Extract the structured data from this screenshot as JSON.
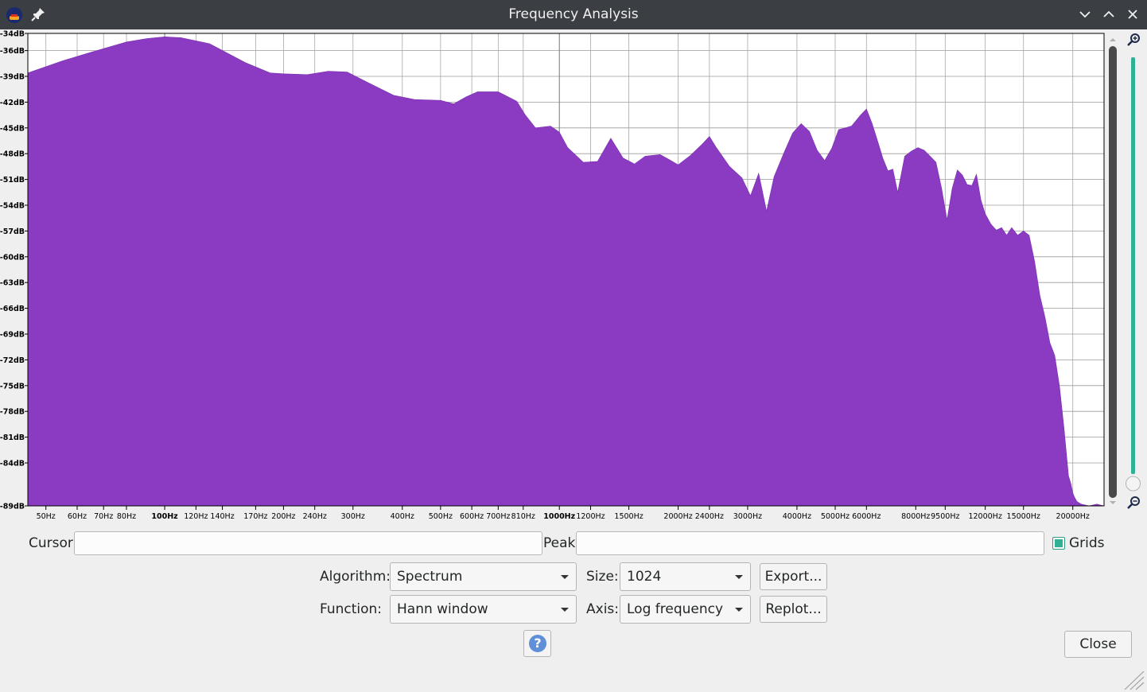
{
  "window": {
    "title": "Frequency Analysis",
    "icon_app": "audacity-logo-icon",
    "icon_pin": "pin-icon",
    "controls": [
      "chevron-down-icon",
      "chevron-up-icon",
      "close-icon"
    ]
  },
  "chart_data": {
    "type": "area",
    "title": "",
    "xlabel": "",
    "ylabel": "",
    "x_scale": "log",
    "xlim": [
      45,
      24000
    ],
    "ylim": [
      -89,
      -34
    ],
    "grid": true,
    "fill_color": "#8b3ac2",
    "y_ticks": [
      {
        "v": -34,
        "label": "-34dB"
      },
      {
        "v": -36,
        "label": "-36dB"
      },
      {
        "v": -39,
        "label": "-39dB"
      },
      {
        "v": -42,
        "label": "-42dB"
      },
      {
        "v": -45,
        "label": "-45dB"
      },
      {
        "v": -48,
        "label": "-48dB"
      },
      {
        "v": -51,
        "label": "-51dB"
      },
      {
        "v": -54,
        "label": "-54dB"
      },
      {
        "v": -57,
        "label": "-57dB"
      },
      {
        "v": -60,
        "label": "-60dB"
      },
      {
        "v": -63,
        "label": "-63dB"
      },
      {
        "v": -66,
        "label": "-66dB"
      },
      {
        "v": -69,
        "label": "-69dB"
      },
      {
        "v": -72,
        "label": "-72dB"
      },
      {
        "v": -75,
        "label": "-75dB"
      },
      {
        "v": -78,
        "label": "-78dB"
      },
      {
        "v": -81,
        "label": "-81dB"
      },
      {
        "v": -84,
        "label": "-84dB"
      },
      {
        "v": -89,
        "label": "-89dB"
      }
    ],
    "x_ticks": [
      {
        "v": 50,
        "label": "50Hz"
      },
      {
        "v": 60,
        "label": "60Hz"
      },
      {
        "v": 70,
        "label": "70Hz"
      },
      {
        "v": 80,
        "label": "80Hz"
      },
      {
        "v": 100,
        "label": "100Hz",
        "major": true
      },
      {
        "v": 120,
        "label": "120Hz"
      },
      {
        "v": 140,
        "label": "140Hz"
      },
      {
        "v": 170,
        "label": "170Hz"
      },
      {
        "v": 200,
        "label": "200Hz"
      },
      {
        "v": 240,
        "label": "240Hz"
      },
      {
        "v": 300,
        "label": "300Hz"
      },
      {
        "v": 400,
        "label": "400Hz"
      },
      {
        "v": 500,
        "label": "500Hz"
      },
      {
        "v": 600,
        "label": "600Hz"
      },
      {
        "v": 700,
        "label": "700Hz"
      },
      {
        "v": 810,
        "label": "810Hz"
      },
      {
        "v": 1000,
        "label": "1000Hz",
        "major": true
      },
      {
        "v": 1200,
        "label": "1200Hz"
      },
      {
        "v": 1500,
        "label": "1500Hz"
      },
      {
        "v": 2000,
        "label": "2000Hz"
      },
      {
        "v": 2400,
        "label": "2400Hz"
      },
      {
        "v": 3000,
        "label": "3000Hz"
      },
      {
        "v": 4000,
        "label": "4000Hz"
      },
      {
        "v": 5000,
        "label": "5000Hz"
      },
      {
        "v": 6000,
        "label": "6000Hz"
      },
      {
        "v": 8000,
        "label": "8000Hz"
      },
      {
        "v": 9500,
        "label": "9500Hz"
      },
      {
        "v": 12000,
        "label": "12000Hz"
      },
      {
        "v": 15000,
        "label": "15000Hz"
      },
      {
        "v": 20000,
        "label": "20000Hz"
      }
    ],
    "series": [
      {
        "x": [
          45,
          55,
          65,
          80,
          90,
          100,
          110,
          130,
          160,
          185,
          200,
          230,
          260,
          290,
          320,
          380,
          430,
          500,
          540,
          580,
          620,
          700,
          780,
          820,
          870,
          950,
          1000,
          1050,
          1150,
          1250,
          1350,
          1450,
          1550,
          1650,
          1800,
          1900,
          2000,
          2150,
          2300,
          2400,
          2500,
          2700,
          2900,
          3050,
          3200,
          3350,
          3500,
          3700,
          3900,
          4100,
          4300,
          4500,
          4700,
          4900,
          5100,
          5300,
          5500,
          5800,
          6000,
          6200,
          6400,
          6600,
          6800,
          7000,
          7200,
          7500,
          7800,
          8100,
          8400,
          8700,
          9000,
          9300,
          9600,
          9900,
          10200,
          10500,
          10800,
          11100,
          11400,
          11700,
          12000,
          12400,
          12800,
          13200,
          13600,
          14000,
          14500,
          15000,
          15500,
          16000,
          16500,
          17000,
          17500,
          18000,
          18500,
          19000,
          19500,
          19800,
          20000,
          20200,
          20500,
          21000,
          22000,
          23000,
          24000
        ],
        "values": [
          -38.6,
          -37.2,
          -36.2,
          -35.0,
          -34.6,
          -34.4,
          -34.5,
          -35.2,
          -37.4,
          -38.6,
          -38.7,
          -38.8,
          -38.4,
          -38.5,
          -39.5,
          -41.2,
          -41.7,
          -41.8,
          -42.2,
          -41.4,
          -40.8,
          -40.8,
          -41.9,
          -43.5,
          -45.0,
          -44.8,
          -45.5,
          -47.3,
          -49.0,
          -48.9,
          -46.2,
          -48.5,
          -49.2,
          -48.3,
          -48.1,
          -48.7,
          -49.3,
          -48.2,
          -46.9,
          -46.0,
          -47.3,
          -49.5,
          -50.8,
          -52.9,
          -50.3,
          -54.7,
          -50.7,
          -48.0,
          -45.6,
          -44.5,
          -45.4,
          -47.6,
          -48.8,
          -47.4,
          -45.2,
          -45.0,
          -44.8,
          -43.5,
          -42.8,
          -44.5,
          -46.5,
          -48.5,
          -50.0,
          -49.8,
          -52.5,
          -48.3,
          -47.7,
          -47.3,
          -47.6,
          -48.3,
          -49.0,
          -52.0,
          -55.7,
          -52.0,
          -49.9,
          -50.5,
          -51.6,
          -51.7,
          -50.4,
          -53.4,
          -55.0,
          -56.2,
          -56.9,
          -56.6,
          -57.5,
          -56.6,
          -57.5,
          -57.0,
          -57.5,
          -60.5,
          -64.5,
          -67.0,
          -70.0,
          -71.5,
          -75.0,
          -80.0,
          -85.5,
          -86.5,
          -87.5,
          -88.0,
          -88.5,
          -88.8,
          -89.0,
          -88.8,
          -89.0
        ]
      }
    ]
  },
  "controls": {
    "cursor_label": "Cursor:",
    "cursor_value": "",
    "peak_label": "Peak:",
    "peak_value": "",
    "grids_label": "Grids",
    "grids_checked": true,
    "algorithm_label": "Algorithm:",
    "algorithm_value": "Spectrum",
    "size_label": "Size:",
    "size_value": "1024",
    "function_label": "Function:",
    "function_value": "Hann window",
    "axis_label": "Axis:",
    "axis_value": "Log frequency",
    "export_label": "Export...",
    "replot_label": "Replot...",
    "close_label": "Close",
    "help_symbol": "?"
  },
  "zoom": {
    "zoom_in_icon": "zoom-in-icon",
    "zoom_out_icon": "zoom-out-icon",
    "slider_color": "#2fb196"
  }
}
